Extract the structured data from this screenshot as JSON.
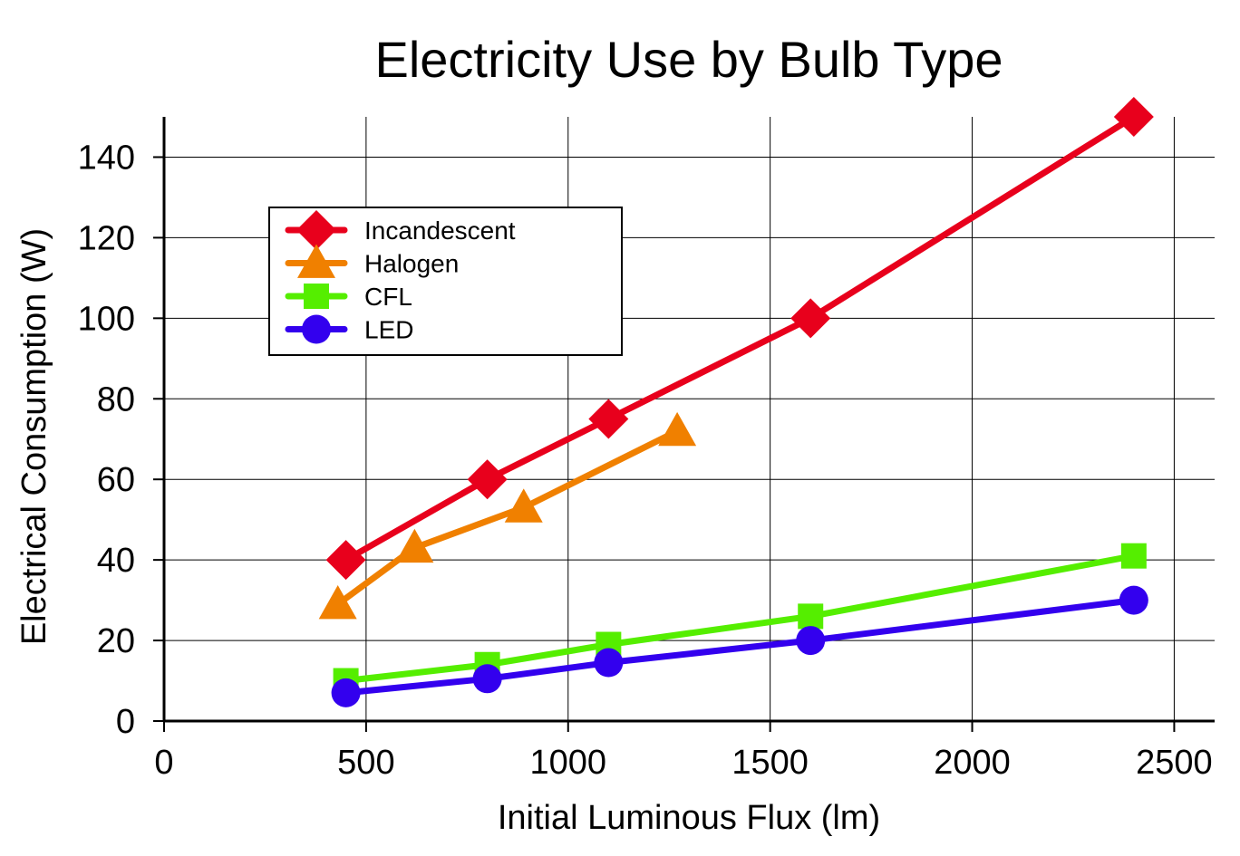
{
  "chart_data": {
    "type": "line",
    "title": "Electricity Use by Bulb Type",
    "xlabel": "Initial Luminous Flux (lm)",
    "ylabel": "Electrical Consumption (W)",
    "xlim": [
      0,
      2600
    ],
    "ylim": [
      0,
      150
    ],
    "xticks": [
      0,
      500,
      1000,
      1500,
      2000,
      2500
    ],
    "yticks": [
      0,
      20,
      40,
      60,
      80,
      100,
      120,
      140
    ],
    "grid": true,
    "legend_position": "top-left",
    "series": [
      {
        "name": "Incandescent",
        "color": "#e8001c",
        "marker": "diamond",
        "x": [
          450,
          800,
          1100,
          1600,
          2400
        ],
        "y": [
          40,
          60,
          75,
          100,
          150
        ]
      },
      {
        "name": "Halogen",
        "color": "#f08000",
        "marker": "triangle",
        "x": [
          430,
          620,
          890,
          1270
        ],
        "y": [
          29,
          43,
          53,
          72
        ]
      },
      {
        "name": "CFL",
        "color": "#55ee00",
        "marker": "square",
        "x": [
          450,
          800,
          1100,
          1600,
          2400
        ],
        "y": [
          10,
          14,
          19,
          26,
          41
        ]
      },
      {
        "name": "LED",
        "color": "#3300ee",
        "marker": "circle",
        "x": [
          450,
          800,
          1100,
          1600,
          2400
        ],
        "y": [
          7,
          10.5,
          14.5,
          20,
          30
        ]
      }
    ]
  }
}
